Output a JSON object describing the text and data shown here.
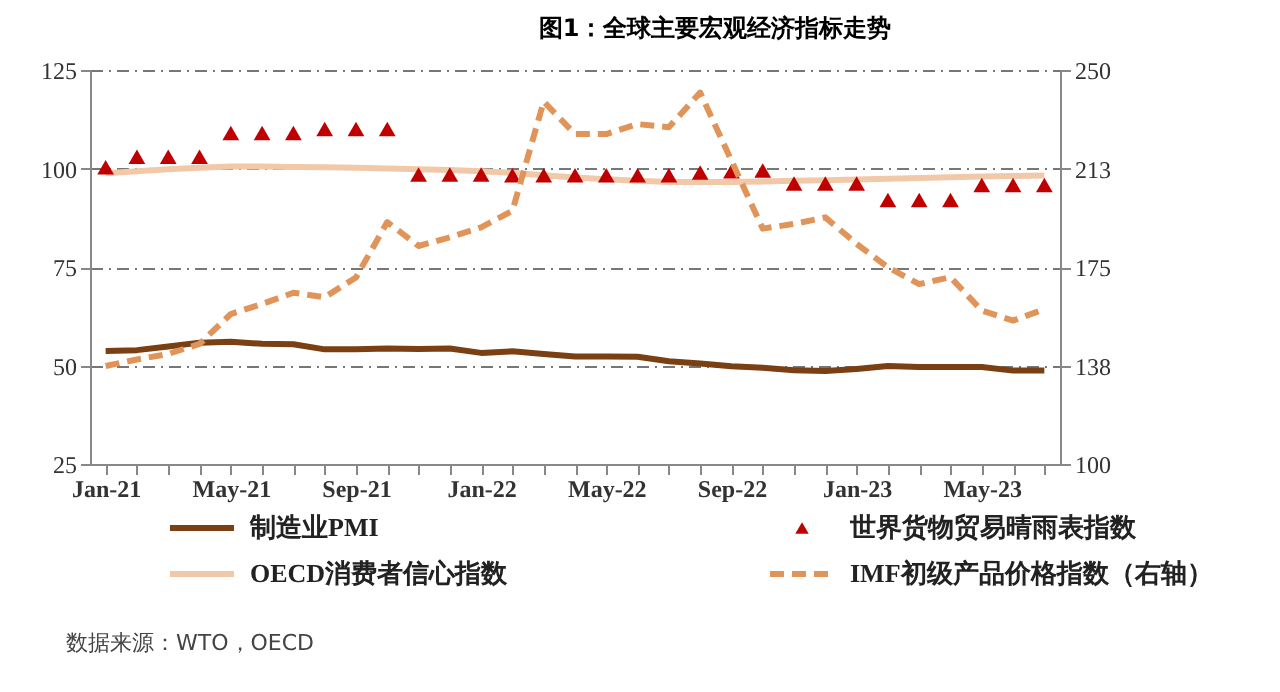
{
  "chart_data": {
    "type": "line",
    "title": "图1：全球主要宏观经济指标走势",
    "categories": [
      "Jan-21",
      null,
      null,
      null,
      "May-21",
      null,
      null,
      null,
      "Sep-21",
      null,
      null,
      null,
      "Jan-22",
      null,
      null,
      null,
      "May-22",
      null,
      null,
      null,
      "Sep-22",
      null,
      null,
      null,
      "Jan-23",
      null,
      null,
      null,
      "May-23",
      null,
      null
    ],
    "series": [
      {
        "name": "制造业PMI",
        "color": "#7b3f14",
        "line_style": "solid",
        "values": [
          53.7,
          53.9,
          54.8,
          55.8,
          56.0,
          55.5,
          55.4,
          54.1,
          54.1,
          54.3,
          54.2,
          54.3,
          53.2,
          53.6,
          52.9,
          52.3,
          52.3,
          52.2,
          51.1,
          50.5,
          49.8,
          49.4,
          48.8,
          48.6,
          49.1,
          49.9,
          49.6,
          49.6,
          49.6,
          48.7,
          48.7
        ]
      },
      {
        "name": "世界货物贸易晴雨表指数",
        "color": "#c00000",
        "type": "scatter",
        "marker": "triangle",
        "values": [
          100.3,
          103,
          103,
          103,
          109,
          109,
          109,
          110,
          110,
          110,
          98.5,
          98.5,
          98.5,
          98.3,
          98.3,
          98.3,
          98.3,
          98.3,
          98.3,
          99.0,
          99.3,
          99.5,
          96.2,
          96.2,
          96.2,
          92,
          92,
          92,
          95.8,
          95.8,
          95.8
        ]
      },
      {
        "name": "OECD消费者信心指数",
        "color": "#f2c9a8",
        "line_style": "solid",
        "values": [
          98.8,
          99.3,
          99.8,
          100.2,
          100.5,
          100.5,
          100.4,
          100.3,
          100.2,
          100.0,
          99.8,
          99.6,
          99.3,
          98.9,
          98.3,
          97.7,
          97.3,
          96.9,
          96.6,
          96.6,
          96.6,
          96.7,
          96.9,
          97.0,
          97.2,
          97.4,
          97.6,
          97.8,
          98.0,
          98.1,
          98.2
        ]
      },
      {
        "name": "IMF初级产品价格指数（右轴）",
        "color": "#e0945a",
        "line_style": "dashed",
        "axis": "y2",
        "values": [
          137.3,
          139.8,
          141.9,
          145.7,
          157.1,
          160.9,
          165.2,
          163.5,
          171,
          192.1,
          183,
          186.3,
          190.1,
          196.4,
          238,
          225.6,
          225.6,
          229.4,
          228.2,
          241.4,
          215.5,
          189.6,
          191.4,
          193.9,
          183.8,
          174.9,
          168.5,
          171.1,
          158.4,
          154.6,
          158.9
        ]
      }
    ],
    "ylim": [
      25,
      125
    ],
    "yticks": [
      25,
      50,
      75,
      100,
      125
    ],
    "y2lim": [
      100,
      250
    ],
    "y2ticks": [
      100,
      {
        "value": 137.5,
        "label": "138"
      },
      {
        "value": 175,
        "label": "175"
      },
      {
        "value": 212.5,
        "label": "213"
      },
      250
    ],
    "grid": "y",
    "legend": "bottom",
    "annotations": [
      "数据来源：WTO，OECD"
    ]
  }
}
